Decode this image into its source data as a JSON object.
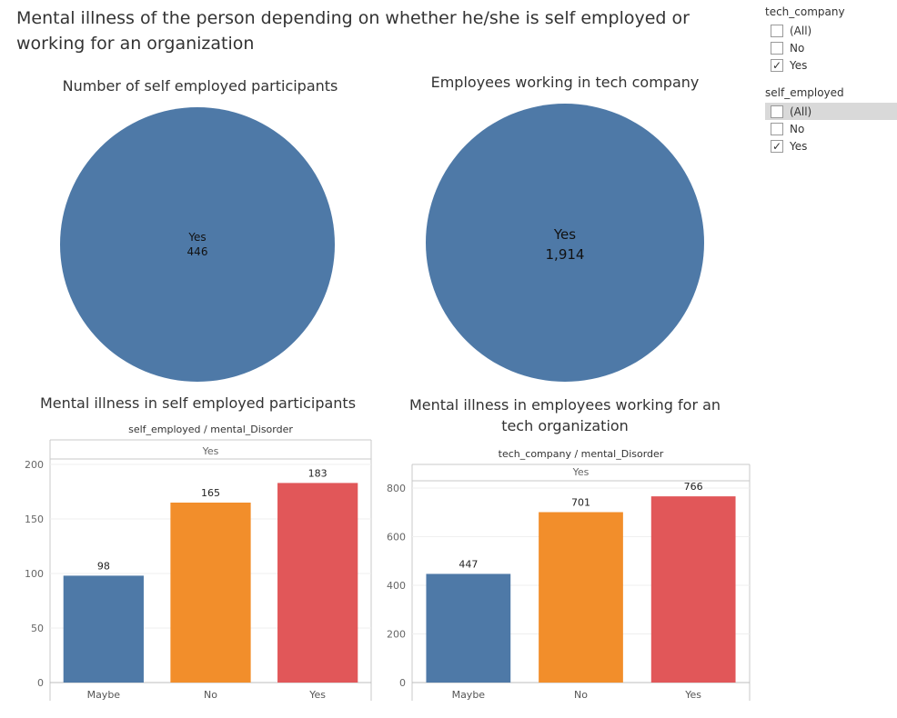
{
  "title": "Mental illness of the person depending on whether he/she is self employed or working for an organization",
  "pies": [
    {
      "title": "Number of self employed participants",
      "label": "Yes",
      "value": "446",
      "color": "#4e79a7"
    },
    {
      "title": "Employees working in tech company",
      "label": "Yes",
      "value": "1,914",
      "color": "#4e79a7"
    }
  ],
  "filters": [
    {
      "title": "tech_company",
      "options": [
        {
          "label": "(All)",
          "checked": false,
          "highlight": false
        },
        {
          "label": "No",
          "checked": false,
          "highlight": false
        },
        {
          "label": "Yes",
          "checked": true,
          "highlight": false
        }
      ]
    },
    {
      "title": "self_employed",
      "options": [
        {
          "label": "(All)",
          "checked": false,
          "highlight": true
        },
        {
          "label": "No",
          "checked": false,
          "highlight": false
        },
        {
          "label": "Yes",
          "checked": true,
          "highlight": false
        }
      ]
    }
  ],
  "check_mark": "✓",
  "chart_data": [
    {
      "type": "bar",
      "title": "Mental illness in self employed participants",
      "header": "self_employed / mental_Disorder",
      "panel": "Yes",
      "categories": [
        "Maybe",
        "No",
        "Yes"
      ],
      "values": [
        98,
        165,
        183
      ],
      "value_labels": [
        "98",
        "165",
        "183"
      ],
      "colors": [
        "#4e79a7",
        "#f28e2b",
        "#e15759"
      ],
      "ylim": [
        0,
        205
      ],
      "yticks": [
        0,
        50,
        100,
        150,
        200
      ]
    },
    {
      "type": "bar",
      "title": "Mental illness in employees working for an tech organization",
      "header": "tech_company / mental_Disorder",
      "panel": "Yes",
      "categories": [
        "Maybe",
        "No",
        "Yes"
      ],
      "values": [
        447,
        701,
        766
      ],
      "value_labels": [
        "447",
        "701",
        "766"
      ],
      "colors": [
        "#4e79a7",
        "#f28e2b",
        "#e15759"
      ],
      "ylim": [
        0,
        830
      ],
      "yticks": [
        0,
        200,
        400,
        600,
        800
      ]
    }
  ]
}
